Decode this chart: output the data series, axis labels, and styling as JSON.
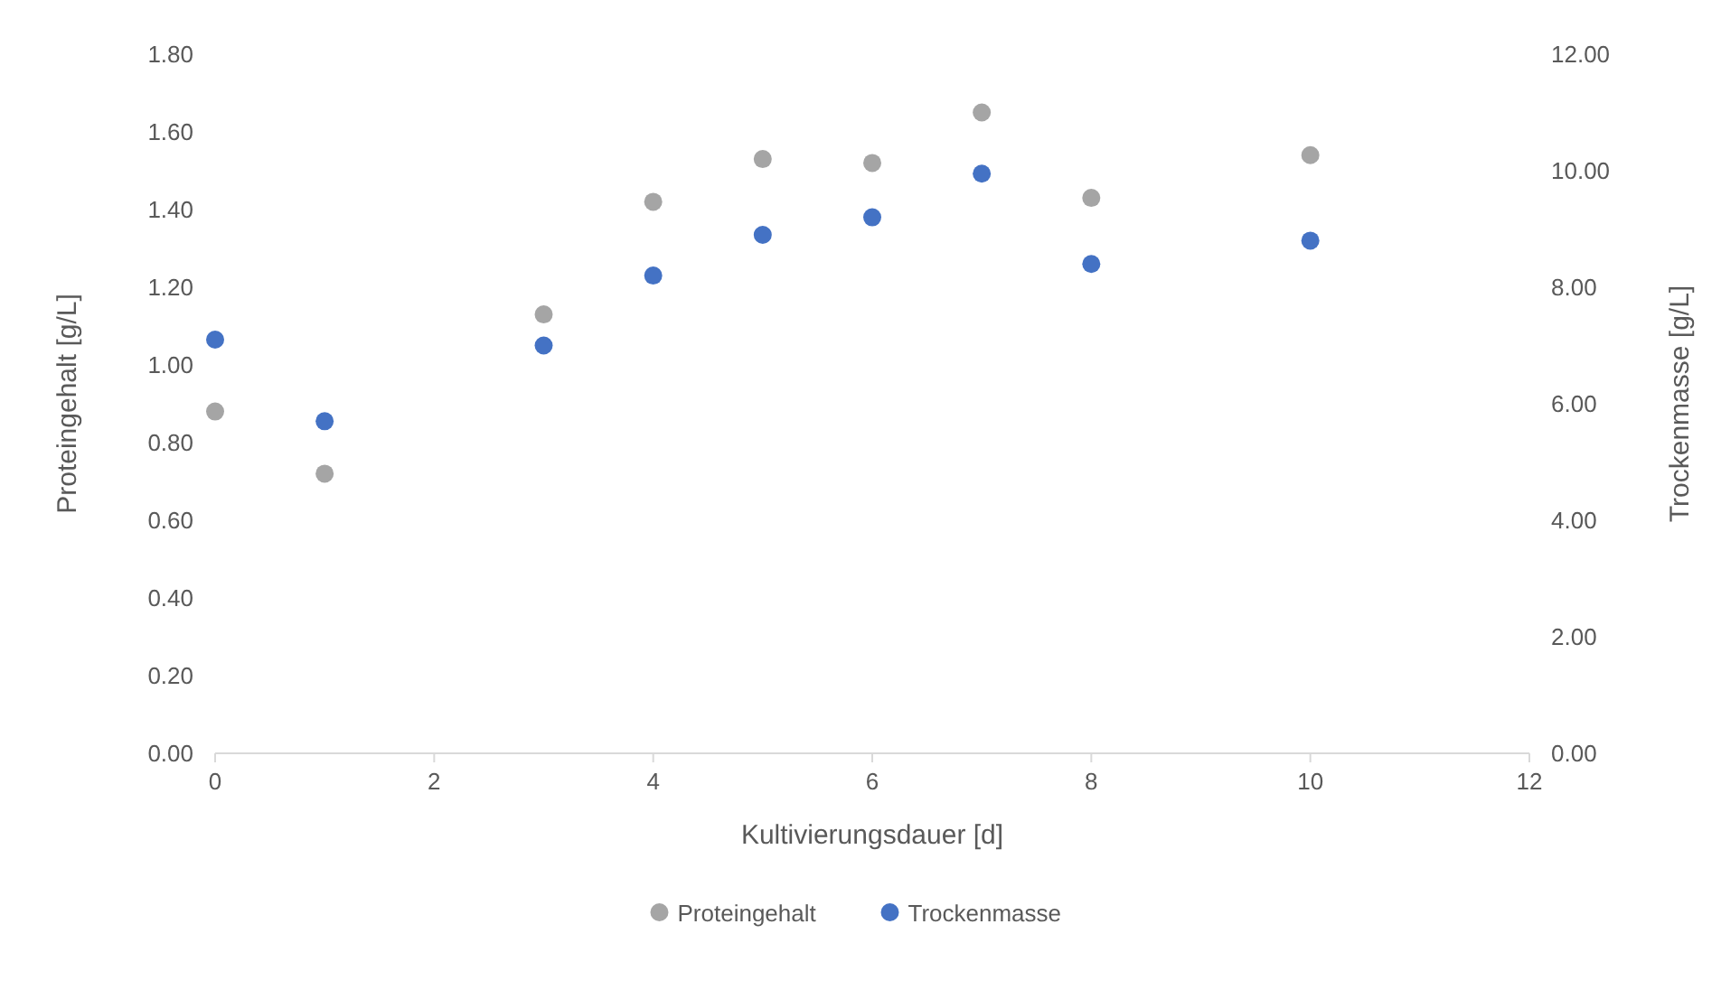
{
  "chart_data": {
    "type": "scatter",
    "xlabel": "Kultivierungsdauer [d]",
    "ylabel": "Proteingehalt [g/L]",
    "y2label": "Trockenmasse [g/L]",
    "x": [
      0,
      1,
      3,
      4,
      5,
      6,
      7,
      8,
      10
    ],
    "series": [
      {
        "name": "Proteingehalt",
        "color": "#a5a5a5",
        "values": [
          0.88,
          0.72,
          1.13,
          1.42,
          1.53,
          1.52,
          1.65,
          1.43,
          1.54
        ]
      },
      {
        "name": "Trockenmasse",
        "color": "#4472c4",
        "axis": "y2",
        "values": [
          7.1,
          5.7,
          7.0,
          8.2,
          8.9,
          9.2,
          9.95,
          8.4,
          8.8
        ]
      }
    ],
    "xlim": [
      0,
      12
    ],
    "xticks": [
      0,
      2,
      4,
      6,
      8,
      10,
      12
    ],
    "ylim": [
      0,
      1.8
    ],
    "yticks": [
      {
        "value": 0,
        "label": "0.00"
      },
      {
        "value": 0.2,
        "label": "0.20"
      },
      {
        "value": 0.4,
        "label": "0.40"
      },
      {
        "value": 0.6,
        "label": "0.60"
      },
      {
        "value": 0.8,
        "label": "0.80"
      },
      {
        "value": 1,
        "label": "1.00"
      },
      {
        "value": 1.2,
        "label": "1.20"
      },
      {
        "value": 1.4,
        "label": "1.40"
      },
      {
        "value": 1.6,
        "label": "1.60"
      },
      {
        "value": 1.8,
        "label": "1.80"
      }
    ],
    "y2lim": [
      0,
      12
    ],
    "y2ticks": [
      {
        "value": 0,
        "label": "0.00"
      },
      {
        "value": 2,
        "label": "2.00"
      },
      {
        "value": 4,
        "label": "4.00"
      },
      {
        "value": 6,
        "label": "6.00"
      },
      {
        "value": 8,
        "label": "8.00"
      },
      {
        "value": 10,
        "label": "10.00"
      },
      {
        "value": 12,
        "label": "12.00"
      }
    ],
    "legend": "bottom",
    "marker": "circle"
  }
}
